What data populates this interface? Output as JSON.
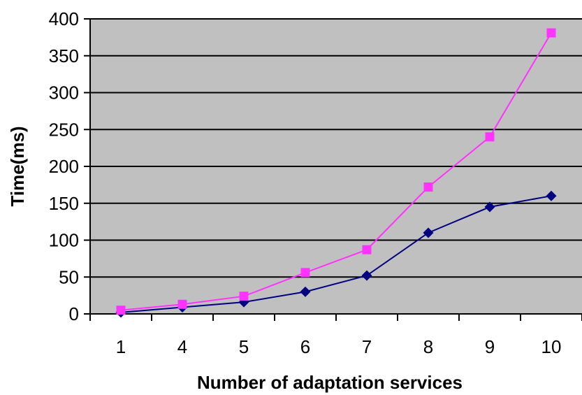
{
  "chart_data": {
    "type": "line",
    "title": "",
    "xlabel": "Number of adaptation services",
    "ylabel": "Time(ms)",
    "categories": [
      "1",
      "4",
      "5",
      "6",
      "7",
      "8",
      "9",
      "10"
    ],
    "ylim": [
      0,
      400
    ],
    "yticks": [
      0,
      50,
      100,
      150,
      200,
      250,
      300,
      350,
      400
    ],
    "grid": true,
    "legend": "none",
    "series": [
      {
        "values": [
          2,
          9,
          16,
          30,
          52,
          110,
          145,
          160
        ],
        "color": "#000080",
        "marker": "diamond"
      },
      {
        "values": [
          5,
          13,
          24,
          56,
          87,
          172,
          240,
          381
        ],
        "color": "#ff33ff",
        "marker": "square"
      }
    ],
    "colors": {
      "plot_background": "#c0c0c0",
      "gridline": "#000000"
    }
  }
}
